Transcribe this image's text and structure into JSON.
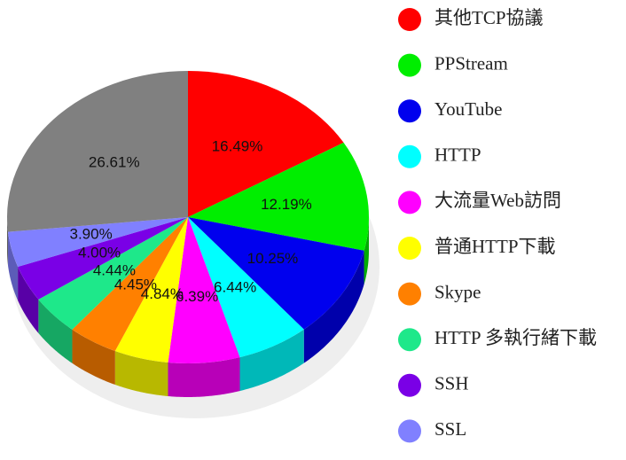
{
  "chart_data": {
    "type": "pie3d",
    "categories": [
      "其他TCP協議",
      "PPStream",
      "YouTube",
      "HTTP",
      "大流量Web訪問",
      "普通HTTP下載",
      "Skype",
      "HTTP 多執行緒下載",
      "SSH",
      "SSL",
      null
    ],
    "values": [
      16.49,
      12.19,
      10.25,
      6.44,
      6.39,
      4.84,
      4.45,
      4.44,
      4.0,
      3.9,
      26.61
    ],
    "value_labels": [
      "16.49%",
      "12.19%",
      "10.25%",
      "6.44%",
      "6.39%",
      "4.84%",
      "4.45%",
      "4.44%",
      "4.00%",
      "3.90%",
      "26.61%"
    ],
    "colors": [
      "#ff0000",
      "#00ee00",
      "#0000ee",
      "#00ffff",
      "#ff00ff",
      "#ffff00",
      "#ff8000",
      "#1ee88a",
      "#7a00e6",
      "#8080ff",
      "#808080"
    ],
    "legend": "right"
  }
}
